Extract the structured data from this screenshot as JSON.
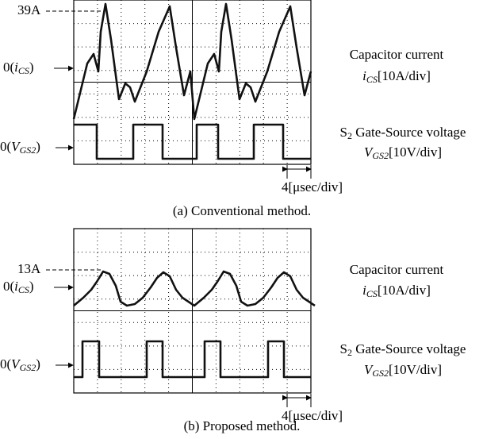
{
  "panel_a": {
    "peak_label": "39A",
    "zero_current": {
      "open": "0(",
      "var": "i",
      "sub": "CS",
      "close": ")"
    },
    "zero_gate": {
      "open": "0(",
      "var": "V",
      "sub": "GS2",
      "close": ")"
    },
    "current_title": "Capacitor current",
    "current_scale": {
      "var": "i",
      "sub": "CS",
      "rest": "[10A/div]"
    },
    "gate_title": {
      "s": "S",
      "sub": "2",
      "rest": " Gate-Source voltage"
    },
    "gate_scale": {
      "var": "V",
      "sub": "GS2",
      "rest": "[10V/div]"
    },
    "time_scale": "4[μsec/div]",
    "caption": "(a) Conventional method."
  },
  "panel_b": {
    "peak_label": "13A",
    "zero_current": {
      "open": "0(",
      "var": "i",
      "sub": "CS",
      "close": ")"
    },
    "zero_gate": {
      "open": "0(",
      "var": "V",
      "sub": "GS2",
      "close": ")"
    },
    "current_title": "Capacitor current",
    "current_scale": {
      "var": "i",
      "sub": "CS",
      "rest": "[10A/div]"
    },
    "gate_title": {
      "s": "S",
      "sub": "2",
      "rest": " Gate-Source voltage"
    },
    "gate_scale": {
      "var": "V",
      "sub": "GS2",
      "rest": "[10V/div]"
    },
    "time_scale": "4[μsec/div]",
    "caption": "(b) Proposed method."
  }
}
